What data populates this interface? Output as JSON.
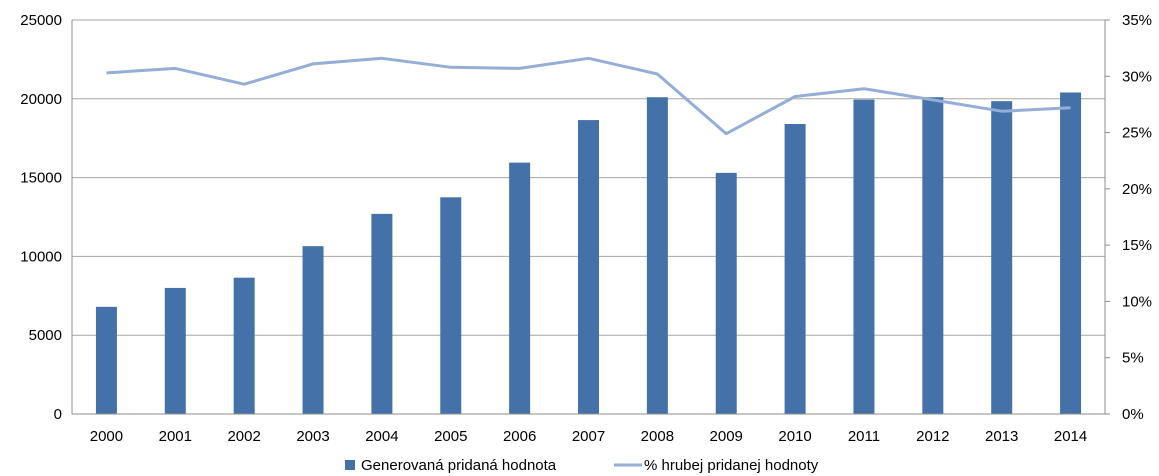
{
  "chart_data": {
    "type": "bar",
    "title": "",
    "xlabel": "",
    "ylabel": "",
    "ylim": [
      0,
      25000
    ],
    "y2lim": [
      0,
      0.35
    ],
    "grid": "horizontal",
    "legend_position": "bottom",
    "categories": [
      "2000",
      "2001",
      "2002",
      "2003",
      "2004",
      "2005",
      "2006",
      "2007",
      "2008",
      "2009",
      "2010",
      "2011",
      "2012",
      "2013",
      "2014"
    ],
    "y_ticks": [
      "0",
      "5000",
      "10000",
      "15000",
      "20000",
      "25000"
    ],
    "y2_ticks": [
      "0%",
      "5%",
      "10%",
      "15%",
      "20%",
      "25%",
      "30%",
      "35%"
    ],
    "series": [
      {
        "name": "Generovaná pridaná hodnota",
        "type": "bar",
        "axis": "left",
        "color": "#4472a8",
        "values": [
          6800,
          8000,
          8650,
          10650,
          12700,
          13750,
          15950,
          18650,
          20100,
          15300,
          18400,
          19950,
          20100,
          19850,
          20400
        ]
      },
      {
        "name": "% hrubej pridanej hodnoty",
        "type": "line",
        "axis": "right",
        "color": "#95aed8",
        "values": [
          0.303,
          0.307,
          0.293,
          0.311,
          0.316,
          0.308,
          0.307,
          0.316,
          0.302,
          0.249,
          0.282,
          0.289,
          0.279,
          0.269,
          0.272
        ]
      }
    ]
  }
}
